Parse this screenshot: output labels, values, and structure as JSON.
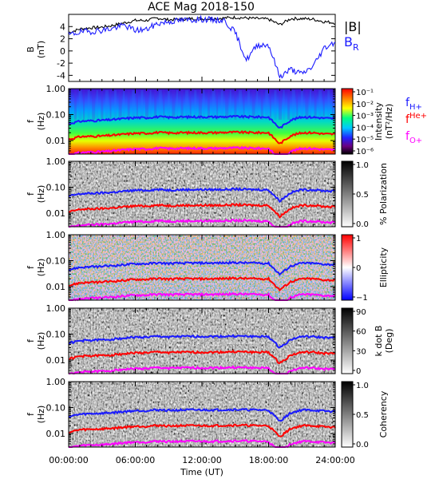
{
  "title": "ACE Mag 2018-150",
  "xlabel": "Time (UT)",
  "x_ticks": [
    "00:00:00",
    "06:00:00",
    "12:00:00",
    "18:00:00",
    "24:00:00"
  ],
  "legend": {
    "b_total": "|B|",
    "b_r_base": "B",
    "b_r_sub": "R",
    "f_h_base": "f",
    "f_h_sub": "H+",
    "f_he_base": "f",
    "f_he_sub": "He+",
    "f_o_base": "f",
    "f_o_sub": "O+"
  },
  "colors": {
    "b_total": "#000000",
    "b_r": "#1a1aff",
    "f_h": "#1a1aff",
    "f_he": "#ff0000",
    "f_o": "#ff00ff"
  },
  "chart_data": [
    {
      "type": "line",
      "panel": "b-field",
      "title": "ACE Mag 2018-150",
      "ylabel_top": "B",
      "ylabel_bottom": "(nT)",
      "xlim_hours": [
        0,
        24
      ],
      "ylim": [
        -5,
        6
      ],
      "y_ticks": [
        "4",
        "2",
        "0",
        "-2",
        "-4"
      ],
      "y_tick_values": [
        4,
        2,
        0,
        -2,
        -4
      ],
      "x_hours": [
        0,
        1,
        2,
        3,
        4,
        5,
        6,
        7,
        8,
        9,
        10,
        11,
        12,
        13,
        14,
        15,
        16,
        17,
        18,
        19,
        20,
        21,
        22,
        23,
        24
      ],
      "series": [
        {
          "name": "|B|",
          "values": [
            3.0,
            3.6,
            3.8,
            3.9,
            4.2,
            4.6,
            5.0,
            5.0,
            5.4,
            5.1,
            5.2,
            5.3,
            5.3,
            5.3,
            5.4,
            5.5,
            5.4,
            5.3,
            5.2,
            4.3,
            5.3,
            5.3,
            5.2,
            4.8,
            4.6
          ]
        },
        {
          "name": "BR",
          "values": [
            2.6,
            3.1,
            3.2,
            3.4,
            3.7,
            4.2,
            3.4,
            3.5,
            4.5,
            4.8,
            5.0,
            5.1,
            5.2,
            5.1,
            5.0,
            3.0,
            -1.5,
            1.0,
            1.0,
            -4.2,
            -3.0,
            -3.8,
            -2.5,
            0.5,
            1.5
          ]
        }
      ]
    },
    {
      "type": "heatmap",
      "panel": "intensity",
      "ylabel_top": "f",
      "ylabel_bottom": "(Hz)",
      "y_scale": "log",
      "ylim": [
        0.003,
        1.0
      ],
      "y_ticks": [
        "1.00",
        "0.10",
        "0.01"
      ],
      "colorbar": {
        "label_top": "Intensity",
        "label_bottom": "(nT²/Hz)",
        "ticks": [
          "10⁻¹",
          "10⁻²",
          "10⁻³",
          "10⁻⁴",
          "10⁻⁵",
          "10⁻⁶"
        ]
      }
    },
    {
      "type": "heatmap",
      "panel": "polarization",
      "ylabel_top": "f",
      "ylabel_bottom": "(Hz)",
      "y_scale": "log",
      "ylim": [
        0.003,
        1.0
      ],
      "y_ticks": [
        "1.00",
        "0.10",
        "0.01"
      ],
      "colorbar": {
        "label": "% Polarization",
        "ticks": [
          "1.0",
          "0.5",
          "0.0"
        ]
      }
    },
    {
      "type": "heatmap",
      "panel": "ellipticity",
      "ylabel_top": "f",
      "ylabel_bottom": "(Hz)",
      "y_scale": "log",
      "ylim": [
        0.003,
        1.0
      ],
      "y_ticks": [
        "1.00",
        "0.10",
        "0.01"
      ],
      "colorbar": {
        "label": "Ellipticity",
        "ticks": [
          "1",
          "0",
          "−1"
        ]
      }
    },
    {
      "type": "heatmap",
      "panel": "k-dot-b",
      "ylabel_top": "f",
      "ylabel_bottom": "(Hz)",
      "y_scale": "log",
      "ylim": [
        0.003,
        1.0
      ],
      "y_ticks": [
        "1.00",
        "0.10",
        "0.01"
      ],
      "colorbar": {
        "label_top": "k dot B",
        "label_bottom": "(Deg)",
        "ticks": [
          "90",
          "60",
          "30",
          "0"
        ]
      }
    },
    {
      "type": "heatmap",
      "panel": "coherency",
      "ylabel_top": "f",
      "ylabel_bottom": "(Hz)",
      "y_scale": "log",
      "ylim": [
        0.003,
        1.0
      ],
      "y_ticks": [
        "1.00",
        "0.10",
        "0.01"
      ],
      "colorbar": {
        "label": "Coherency",
        "ticks": [
          "1.0",
          "0.5",
          "0.0"
        ]
      }
    }
  ],
  "gyrofrequency_lines": {
    "x_hours": [
      0,
      1,
      2,
      3,
      4,
      5,
      6,
      7,
      8,
      9,
      10,
      11,
      12,
      13,
      14,
      15,
      16,
      17,
      18,
      19,
      20,
      21,
      22,
      23,
      24
    ],
    "f_h": [
      0.045,
      0.055,
      0.058,
      0.06,
      0.064,
      0.07,
      0.076,
      0.076,
      0.082,
      0.078,
      0.08,
      0.081,
      0.081,
      0.081,
      0.082,
      0.084,
      0.082,
      0.081,
      0.079,
      0.03,
      0.062,
      0.081,
      0.079,
      0.073,
      0.07
    ],
    "f_he": [
      0.011,
      0.014,
      0.0145,
      0.015,
      0.016,
      0.0175,
      0.019,
      0.019,
      0.0205,
      0.0195,
      0.02,
      0.02,
      0.02,
      0.02,
      0.0205,
      0.021,
      0.0205,
      0.02,
      0.02,
      0.0075,
      0.0155,
      0.02,
      0.02,
      0.018,
      0.0175
    ],
    "f_o": [
      0.0028,
      0.0034,
      0.0036,
      0.0037,
      0.004,
      0.0044,
      0.0047,
      0.0047,
      0.0051,
      0.0049,
      0.005,
      0.005,
      0.005,
      0.005,
      0.0051,
      0.0052,
      0.0051,
      0.005,
      0.0049,
      0.0019,
      0.0039,
      0.005,
      0.0049,
      0.0045,
      0.0044
    ]
  }
}
